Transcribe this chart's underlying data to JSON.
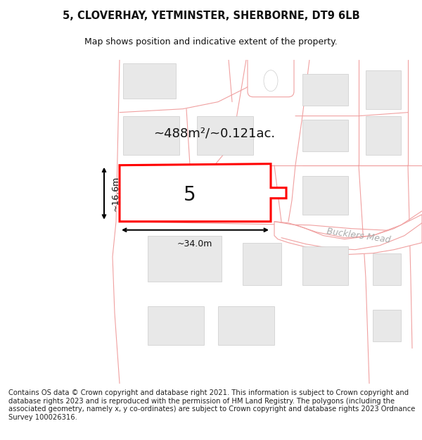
{
  "title": "5, CLOVERHAY, YETMINSTER, SHERBORNE, DT9 6LB",
  "subtitle": "Map shows position and indicative extent of the property.",
  "footer": "Contains OS data © Crown copyright and database right 2021. This information is subject to Crown copyright and database rights 2023 and is reproduced with the permission of HM Land Registry. The polygons (including the associated geometry, namely x, y co-ordinates) are subject to Crown copyright and database rights 2023 Ordnance Survey 100026316.",
  "bg_color": "#ffffff",
  "road_color": "#f0a0a0",
  "road_lw": 0.8,
  "building_fill": "#e8e8e8",
  "building_edge": "#cccccc",
  "building_lw": 0.5,
  "highlight_fill": "#ffffff",
  "highlight_edge": "#ff0000",
  "highlight_lw": 2.2,
  "area_text": "~488m²/~0.121ac.",
  "label_number": "5",
  "dim_width": "~34.0m",
  "dim_height": "~16.6m",
  "road_label": "Bucklers Mead",
  "title_fontsize": 10.5,
  "subtitle_fontsize": 9,
  "footer_fontsize": 7.2,
  "area_fontsize": 13,
  "num_fontsize": 20,
  "dim_fontsize": 9
}
